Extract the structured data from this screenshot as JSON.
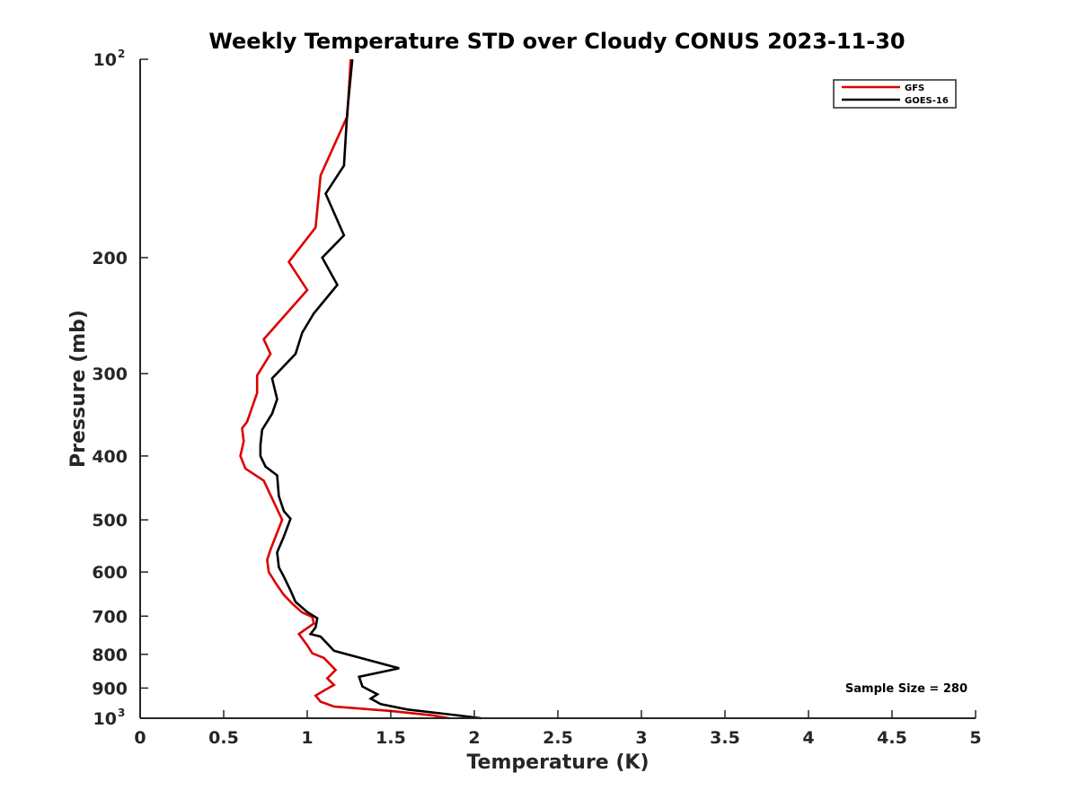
{
  "chart_data": {
    "type": "line",
    "title": "Weekly Temperature STD over Cloudy CONUS 2023-11-30",
    "xlabel": "Temperature (K)",
    "ylabel": "Pressure (mb)",
    "xlim": [
      0,
      5
    ],
    "ylim": [
      100,
      1000
    ],
    "y_scale": "log",
    "y_reversed": true,
    "grid": false,
    "legend_position": "top-right",
    "x_ticks": [
      0,
      0.5,
      1,
      1.5,
      2,
      2.5,
      3,
      3.5,
      4,
      4.5,
      5
    ],
    "x_tick_labels": [
      "0",
      "0.5",
      "1",
      "1.5",
      "2",
      "2.5",
      "3",
      "3.5",
      "4",
      "4.5",
      "5"
    ],
    "y_ticks": [
      {
        "value": 100,
        "base": "10",
        "exp": "2"
      },
      {
        "value": 200,
        "label": "200"
      },
      {
        "value": 300,
        "label": "300"
      },
      {
        "value": 400,
        "label": "400"
      },
      {
        "value": 500,
        "label": "500"
      },
      {
        "value": 600,
        "label": "600"
      },
      {
        "value": 700,
        "label": "700"
      },
      {
        "value": 800,
        "label": "800"
      },
      {
        "value": 900,
        "label": "900"
      },
      {
        "value": 1000,
        "base": "10",
        "exp": "3"
      }
    ],
    "annotation": "Sample Size = 280",
    "series": [
      {
        "name": "GFS",
        "color": "#dd0000",
        "points": [
          [
            1.26,
            100
          ],
          [
            1.24,
            122
          ],
          [
            1.08,
            150
          ],
          [
            1.05,
            180
          ],
          [
            0.89,
            203
          ],
          [
            1.0,
            224
          ],
          [
            0.74,
            266
          ],
          [
            0.78,
            280
          ],
          [
            0.7,
            302
          ],
          [
            0.7,
            321
          ],
          [
            0.64,
            355
          ],
          [
            0.61,
            363
          ],
          [
            0.62,
            380
          ],
          [
            0.6,
            400
          ],
          [
            0.63,
            418
          ],
          [
            0.74,
            436
          ],
          [
            0.85,
            500
          ],
          [
            0.78,
            555
          ],
          [
            0.76,
            575
          ],
          [
            0.77,
            600
          ],
          [
            0.81,
            623
          ],
          [
            0.86,
            650
          ],
          [
            0.91,
            670
          ],
          [
            0.97,
            691
          ],
          [
            1.03,
            702
          ],
          [
            1.04,
            718
          ],
          [
            0.95,
            745
          ],
          [
            1.0,
            775
          ],
          [
            1.03,
            797
          ],
          [
            1.1,
            810
          ],
          [
            1.17,
            845
          ],
          [
            1.12,
            870
          ],
          [
            1.16,
            890
          ],
          [
            1.1,
            908
          ],
          [
            1.05,
            924
          ],
          [
            1.08,
            944
          ],
          [
            1.16,
            960
          ],
          [
            1.5,
            975
          ],
          [
            1.75,
            990
          ],
          [
            1.85,
            1000
          ]
        ]
      },
      {
        "name": "GOES-16",
        "color": "#000000",
        "points": [
          [
            1.27,
            100
          ],
          [
            1.24,
            120
          ],
          [
            1.22,
            145
          ],
          [
            1.11,
            160
          ],
          [
            1.22,
            185
          ],
          [
            1.09,
            200
          ],
          [
            1.18,
            220
          ],
          [
            1.04,
            243
          ],
          [
            0.97,
            260
          ],
          [
            0.93,
            280
          ],
          [
            0.79,
            305
          ],
          [
            0.82,
            328
          ],
          [
            0.79,
            345
          ],
          [
            0.73,
            365
          ],
          [
            0.72,
            385
          ],
          [
            0.72,
            400
          ],
          [
            0.75,
            415
          ],
          [
            0.82,
            428
          ],
          [
            0.83,
            460
          ],
          [
            0.86,
            485
          ],
          [
            0.9,
            498
          ],
          [
            0.86,
            530
          ],
          [
            0.82,
            560
          ],
          [
            0.83,
            590
          ],
          [
            0.86,
            610
          ],
          [
            0.9,
            640
          ],
          [
            0.93,
            666
          ],
          [
            1.0,
            690
          ],
          [
            1.06,
            705
          ],
          [
            1.05,
            728
          ],
          [
            1.02,
            745
          ],
          [
            1.08,
            752
          ],
          [
            1.16,
            790
          ],
          [
            1.55,
            840
          ],
          [
            1.31,
            865
          ],
          [
            1.33,
            895
          ],
          [
            1.42,
            920
          ],
          [
            1.38,
            934
          ],
          [
            1.44,
            952
          ],
          [
            1.6,
            970
          ],
          [
            1.9,
            990
          ],
          [
            2.04,
            1000
          ]
        ]
      }
    ]
  }
}
